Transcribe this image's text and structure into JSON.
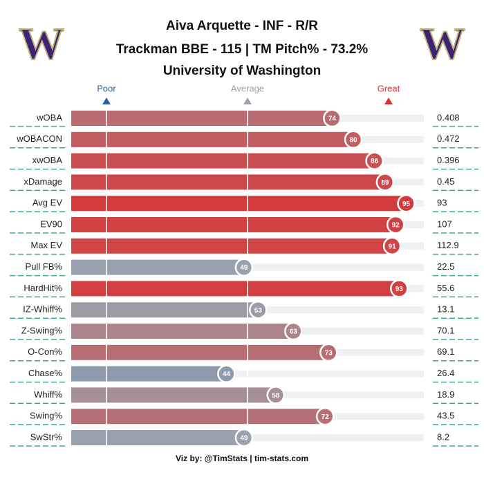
{
  "chart_data": {
    "type": "percentile_bar",
    "title": [
      "Aiva Arquette - INF - R/R",
      "Trackman BBE - 115 | TM Pitch% - 73.2%",
      "University of Washington"
    ],
    "logo": "W",
    "footer": "Viz by: @TimStats | tim-stats.com",
    "xlim": [
      0,
      100
    ],
    "xticks": [
      10,
      50
    ],
    "markers": [
      {
        "label": "Poor",
        "value": 10
      },
      {
        "label": "Average",
        "value": 50
      },
      {
        "label": "Great",
        "value": 90
      }
    ],
    "scale_colors": [
      "#2f5f9e",
      "#9aa2ad",
      "#dc2f2f"
    ],
    "categories": [
      "wOBA",
      "wOBACON",
      "xwOBA",
      "xDamage",
      "Avg EV",
      "EV90",
      "Max EV",
      "Pull FB%",
      "HardHit%",
      "IZ-Whiff%",
      "Z-Swing%",
      "O-Con%",
      "Chase%",
      "Whiff%",
      "Swing%",
      "SwStr%"
    ],
    "values": [
      74,
      80,
      86,
      89,
      95,
      92,
      91,
      49,
      93,
      53,
      63,
      73,
      44,
      58,
      72,
      49
    ],
    "stat_values": [
      0.408,
      0.472,
      0.396,
      0.45,
      93,
      107,
      112.9,
      22.5,
      55.6,
      13.1,
      70.1,
      69.1,
      26.4,
      18.9,
      43.5,
      8.2
    ]
  }
}
